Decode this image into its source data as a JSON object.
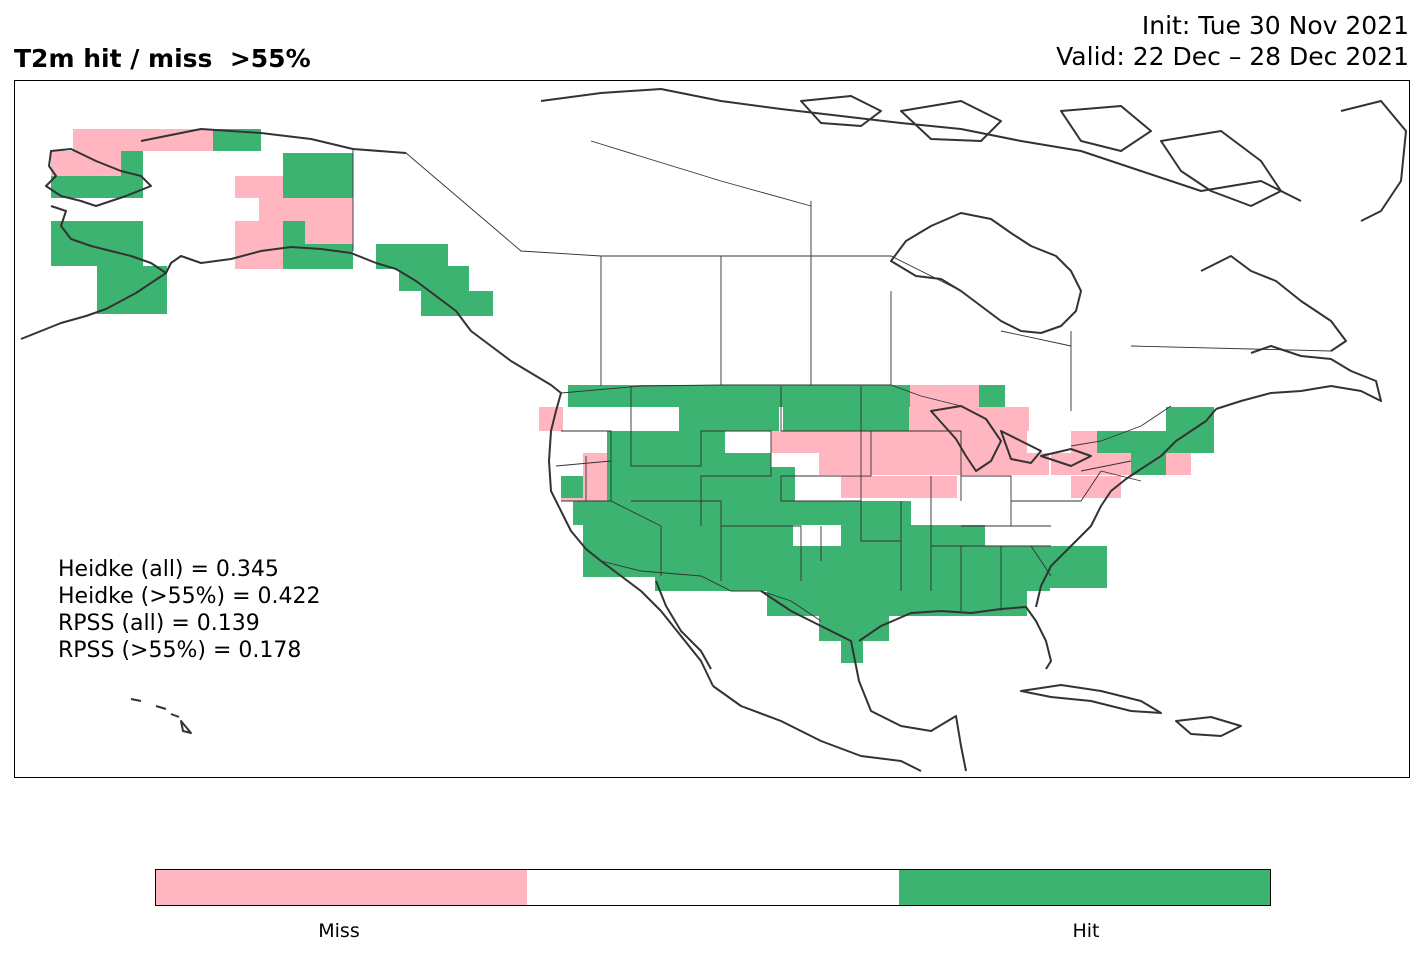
{
  "title": {
    "left": "T2m hit / miss  >55%",
    "init": "Init: Tue 30 Nov 2021",
    "valid": "Valid: 22 Dec – 28 Dec 2021"
  },
  "scores": [
    "Heidke (all) = 0.345",
    "Heidke (>55%) = 0.422",
    "RPSS (all) = 0.139",
    "RPSS (>55%) = 0.178"
  ],
  "colors": {
    "miss": "#ffb6c1",
    "neutral": "#ffffff",
    "hit": "#3cb371",
    "coast": "#333333"
  },
  "legend": {
    "miss_label": "Miss",
    "hit_label": "Hit"
  }
}
